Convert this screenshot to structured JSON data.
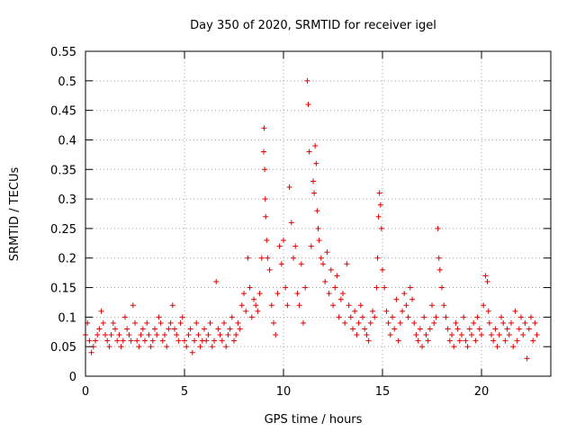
{
  "chart_data": {
    "type": "scatter",
    "title": "Day 350 of 2020, SRMTID for receiver igel",
    "xlabel": "GPS time / hours",
    "ylabel": "SRMTID / TECUs",
    "xlim": [
      0,
      23.5
    ],
    "ylim": [
      0,
      0.55
    ],
    "xticks": [
      0,
      5,
      10,
      15,
      20
    ],
    "xtick_labels": [
      "0",
      "5",
      "10",
      "15",
      "20"
    ],
    "yticks": [
      0,
      0.05,
      0.1,
      0.15,
      0.2,
      0.25,
      0.3,
      0.35,
      0.4,
      0.45,
      0.5,
      0.55
    ],
    "ytick_labels": [
      "0",
      "0.05",
      "0.1",
      "0.15",
      "0.2",
      "0.25",
      "0.3",
      "0.35",
      "0.4",
      "0.45",
      "0.5",
      "0.55"
    ],
    "grid": true,
    "marker": "+",
    "marker_color": "#e00000",
    "series": [
      {
        "name": "SRMTID",
        "x": [
          0.0,
          0.1,
          0.2,
          0.3,
          0.4,
          0.5,
          0.6,
          0.7,
          0.8,
          0.9,
          1.0,
          1.1,
          1.2,
          1.3,
          1.4,
          1.5,
          1.6,
          1.7,
          1.8,
          1.9,
          2.0,
          2.1,
          2.2,
          2.3,
          2.4,
          2.5,
          2.6,
          2.7,
          2.8,
          2.9,
          3.0,
          3.1,
          3.2,
          3.3,
          3.4,
          3.5,
          3.6,
          3.7,
          3.8,
          3.9,
          4.0,
          4.1,
          4.2,
          4.3,
          4.4,
          4.5,
          4.6,
          4.7,
          4.8,
          4.9,
          5.0,
          5.1,
          5.2,
          5.3,
          5.4,
          5.5,
          5.6,
          5.7,
          5.8,
          5.9,
          6.0,
          6.1,
          6.2,
          6.3,
          6.4,
          6.5,
          6.6,
          6.7,
          6.8,
          6.9,
          7.0,
          7.1,
          7.2,
          7.3,
          7.4,
          7.5,
          7.6,
          7.7,
          7.8,
          7.9,
          8.0,
          8.1,
          8.2,
          8.3,
          8.4,
          8.5,
          8.6,
          8.7,
          8.8,
          8.9,
          9.0,
          9.02,
          9.05,
          9.08,
          9.1,
          9.15,
          9.2,
          9.3,
          9.4,
          9.5,
          9.6,
          9.7,
          9.8,
          9.9,
          10.0,
          10.1,
          10.2,
          10.3,
          10.4,
          10.5,
          10.6,
          10.7,
          10.8,
          10.9,
          11.0,
          11.1,
          11.2,
          11.25,
          11.3,
          11.4,
          11.5,
          11.55,
          11.6,
          11.65,
          11.7,
          11.75,
          11.8,
          11.9,
          12.0,
          12.1,
          12.2,
          12.3,
          12.4,
          12.5,
          12.6,
          12.7,
          12.8,
          12.9,
          13.0,
          13.1,
          13.2,
          13.3,
          13.4,
          13.5,
          13.6,
          13.7,
          13.8,
          13.9,
          14.0,
          14.1,
          14.2,
          14.3,
          14.4,
          14.5,
          14.6,
          14.7,
          14.75,
          14.8,
          14.85,
          14.9,
          14.95,
          15.0,
          15.1,
          15.2,
          15.3,
          15.4,
          15.5,
          15.6,
          15.7,
          15.8,
          15.9,
          16.0,
          16.1,
          16.2,
          16.3,
          16.4,
          16.5,
          16.6,
          16.7,
          16.8,
          16.9,
          17.0,
          17.1,
          17.2,
          17.3,
          17.4,
          17.5,
          17.6,
          17.7,
          17.8,
          17.85,
          17.9,
          18.0,
          18.1,
          18.2,
          18.3,
          18.4,
          18.5,
          18.6,
          18.7,
          18.8,
          18.9,
          19.0,
          19.1,
          19.2,
          19.3,
          19.4,
          19.5,
          19.6,
          19.7,
          19.8,
          19.9,
          20.0,
          20.1,
          20.2,
          20.3,
          20.35,
          20.4,
          20.5,
          20.6,
          20.7,
          20.8,
          20.9,
          21.0,
          21.1,
          21.2,
          21.3,
          21.4,
          21.5,
          21.6,
          21.7,
          21.8,
          21.9,
          22.0,
          22.1,
          22.2,
          22.3,
          22.4,
          22.5,
          22.6,
          22.7,
          22.8
        ],
        "y": [
          0.07,
          0.09,
          0.06,
          0.04,
          0.05,
          0.06,
          0.07,
          0.08,
          0.11,
          0.09,
          0.07,
          0.06,
          0.05,
          0.07,
          0.09,
          0.08,
          0.06,
          0.07,
          0.05,
          0.06,
          0.1,
          0.08,
          0.07,
          0.06,
          0.12,
          0.09,
          0.06,
          0.05,
          0.07,
          0.08,
          0.06,
          0.09,
          0.07,
          0.05,
          0.06,
          0.08,
          0.07,
          0.1,
          0.09,
          0.06,
          0.07,
          0.05,
          0.08,
          0.09,
          0.12,
          0.08,
          0.07,
          0.06,
          0.09,
          0.1,
          0.06,
          0.05,
          0.07,
          0.08,
          0.04,
          0.06,
          0.09,
          0.07,
          0.05,
          0.06,
          0.08,
          0.06,
          0.07,
          0.09,
          0.05,
          0.06,
          0.16,
          0.08,
          0.07,
          0.06,
          0.09,
          0.05,
          0.07,
          0.08,
          0.1,
          0.06,
          0.07,
          0.09,
          0.08,
          0.12,
          0.14,
          0.11,
          0.2,
          0.15,
          0.1,
          0.13,
          0.12,
          0.11,
          0.14,
          0.2,
          0.38,
          0.42,
          0.35,
          0.3,
          0.27,
          0.23,
          0.2,
          0.18,
          0.12,
          0.09,
          0.07,
          0.14,
          0.22,
          0.19,
          0.23,
          0.15,
          0.12,
          0.32,
          0.26,
          0.2,
          0.22,
          0.14,
          0.12,
          0.19,
          0.09,
          0.15,
          0.5,
          0.46,
          0.38,
          0.22,
          0.33,
          0.31,
          0.39,
          0.36,
          0.28,
          0.25,
          0.23,
          0.2,
          0.19,
          0.16,
          0.21,
          0.14,
          0.18,
          0.12,
          0.15,
          0.17,
          0.1,
          0.13,
          0.14,
          0.09,
          0.19,
          0.12,
          0.1,
          0.08,
          0.11,
          0.07,
          0.09,
          0.12,
          0.1,
          0.08,
          0.07,
          0.06,
          0.09,
          0.11,
          0.1,
          0.15,
          0.2,
          0.27,
          0.31,
          0.29,
          0.25,
          0.18,
          0.15,
          0.11,
          0.09,
          0.07,
          0.1,
          0.08,
          0.13,
          0.06,
          0.09,
          0.11,
          0.14,
          0.12,
          0.1,
          0.15,
          0.13,
          0.09,
          0.07,
          0.06,
          0.08,
          0.05,
          0.1,
          0.07,
          0.06,
          0.08,
          0.12,
          0.09,
          0.1,
          0.25,
          0.2,
          0.18,
          0.15,
          0.12,
          0.1,
          0.08,
          0.06,
          0.07,
          0.05,
          0.09,
          0.08,
          0.06,
          0.07,
          0.1,
          0.06,
          0.05,
          0.08,
          0.07,
          0.09,
          0.06,
          0.1,
          0.08,
          0.07,
          0.12,
          0.17,
          0.16,
          0.11,
          0.09,
          0.07,
          0.06,
          0.08,
          0.05,
          0.07,
          0.1,
          0.09,
          0.06,
          0.08,
          0.07,
          0.09,
          0.05,
          0.11,
          0.06,
          0.08,
          0.1,
          0.07,
          0.09,
          0.03,
          0.08,
          0.1,
          0.06,
          0.09,
          0.07
        ]
      }
    ]
  }
}
